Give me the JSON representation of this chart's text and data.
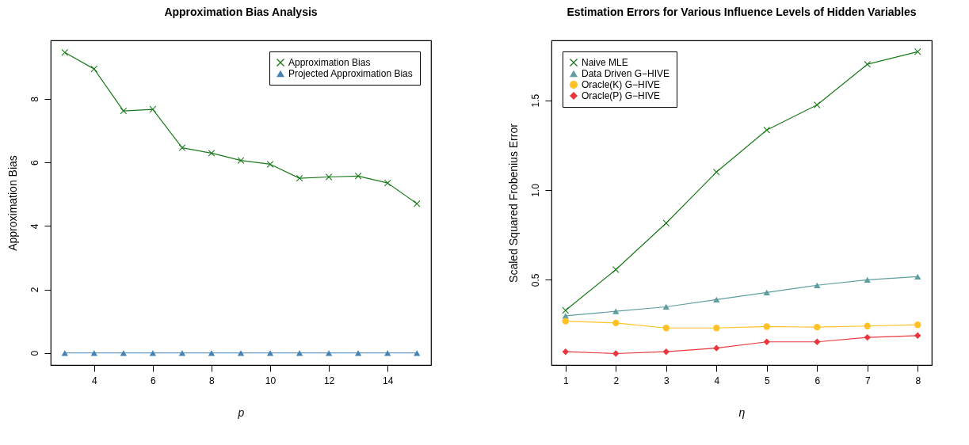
{
  "chart_data": [
    {
      "type": "line",
      "title": "Approximation Bias Analysis",
      "xlabel": "p",
      "ylabel": "Approximation Bias",
      "x": [
        3,
        4,
        5,
        6,
        7,
        8,
        9,
        10,
        11,
        12,
        13,
        14,
        15
      ],
      "series": [
        {
          "name": "Approximation Bias",
          "color": "#1b7a1b",
          "marker": "cross",
          "values": [
            9.46,
            8.94,
            7.62,
            7.67,
            6.46,
            6.29,
            6.06,
            5.94,
            5.5,
            5.54,
            5.57,
            5.35,
            4.7
          ]
        },
        {
          "name": "Projected Approximation Bias",
          "color": "#4682b4",
          "marker": "triangle",
          "values": [
            0,
            0,
            0,
            0,
            0,
            0,
            0,
            0,
            0,
            0,
            0,
            0,
            0
          ]
        }
      ],
      "xlim": [
        2.52,
        15.48
      ],
      "xticks": [
        4,
        6,
        8,
        10,
        12,
        14
      ],
      "ylim": [
        -0.38,
        9.84
      ],
      "yticks": [
        0,
        2,
        4,
        6,
        8
      ],
      "legend": "top right",
      "grid": false,
      "line_style": "solid"
    },
    {
      "type": "line",
      "title": "Estimation Errors for Various Influence Levels of Hidden Variables",
      "xlabel": "η",
      "ylabel": "Scaled Squared Frobenius Error",
      "x": [
        1,
        2,
        3,
        4,
        5,
        6,
        7,
        8
      ],
      "series": [
        {
          "name": "Naive MLE",
          "color": "#1b7a1b",
          "marker": "cross",
          "values": [
            0.33,
            0.557,
            0.816,
            1.1,
            1.334,
            1.474,
            1.7,
            1.77
          ]
        },
        {
          "name": "Data Driven G−HIVE",
          "color": "#5f9ea0",
          "marker": "triangle",
          "values": [
            0.3,
            0.325,
            0.35,
            0.39,
            0.43,
            0.47,
            0.5,
            0.518
          ]
        },
        {
          "name": "Oracle(K) G−HIVE",
          "color": "#ffc125",
          "marker": "circle",
          "values": [
            0.27,
            0.26,
            0.232,
            0.232,
            0.24,
            0.237,
            0.243,
            0.25
          ]
        },
        {
          "name": "Oracle(P) G−HIVE",
          "color": "#e8383d",
          "marker": "diamond",
          "values": [
            0.1,
            0.09,
            0.1,
            0.12,
            0.155,
            0.155,
            0.18,
            0.19
          ]
        }
      ],
      "xlim": [
        0.72,
        8.28
      ],
      "xticks": [
        1,
        2,
        3,
        4,
        5,
        6,
        7,
        8
      ],
      "ylim": [
        0.026,
        1.833
      ],
      "yticks": [
        0.5,
        {
          "value": 1,
          "label": "1.0"
        },
        1.5
      ],
      "legend": "top left",
      "grid": false,
      "line_style": "solid"
    }
  ]
}
